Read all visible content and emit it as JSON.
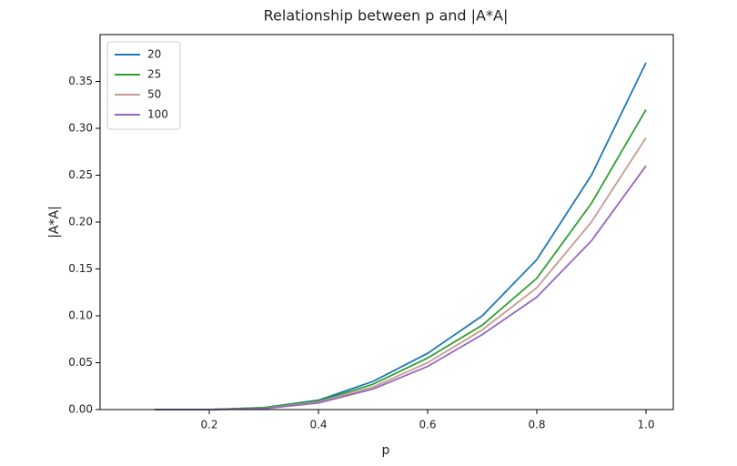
{
  "chart_data": {
    "type": "line",
    "title": "Relationship between p and |A*A|",
    "x_label": "p",
    "y_label": "|A*A|",
    "x": [
      0.1,
      0.2,
      0.3,
      0.4,
      0.5,
      0.6,
      0.7,
      0.8,
      0.9,
      1.0
    ],
    "series": [
      {
        "name": "20",
        "color": "#1f77b4",
        "values": [
          0.0,
          0.0,
          0.002,
          0.01,
          0.03,
          0.06,
          0.1,
          0.16,
          0.25,
          0.37
        ]
      },
      {
        "name": "25",
        "color": "#2ca02c",
        "values": [
          0.0,
          0.0,
          0.002,
          0.009,
          0.027,
          0.055,
          0.09,
          0.14,
          0.22,
          0.32
        ]
      },
      {
        "name": "50",
        "color": "#c49c94",
        "values": [
          0.0,
          0.0,
          0.001,
          0.008,
          0.024,
          0.05,
          0.085,
          0.13,
          0.2,
          0.29
        ]
      },
      {
        "name": "100",
        "color": "#9467bd",
        "values": [
          0.0,
          0.0,
          0.001,
          0.007,
          0.022,
          0.046,
          0.08,
          0.12,
          0.18,
          0.26
        ]
      }
    ],
    "xlim": [
      0.0,
      1.05
    ],
    "xticks": [
      0.2,
      0.4,
      0.6,
      0.8,
      {
        "value": 1.0,
        "label": "1.0"
      }
    ],
    "ylim": [
      0.0,
      0.4
    ],
    "yticks": [
      {
        "value": 0.0,
        "label": "0.00"
      },
      0.05,
      {
        "value": 0.1,
        "label": "0.10"
      },
      0.15,
      {
        "value": 0.2,
        "label": "0.20"
      },
      0.25,
      {
        "value": 0.3,
        "label": "0.30"
      },
      0.35
    ],
    "legend": "upper left"
  }
}
